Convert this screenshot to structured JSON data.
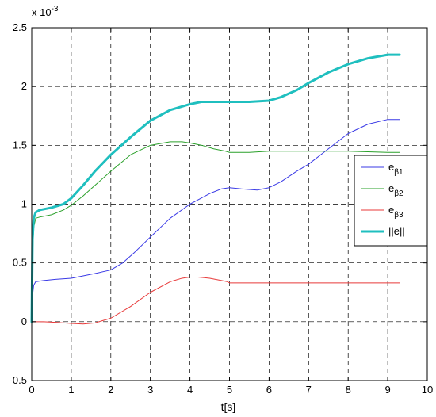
{
  "chart_data": {
    "type": "line",
    "xlabel": "t[s]",
    "ylabel": "",
    "exponent_base": "x 10",
    "exponent_power": "-3",
    "xlim": [
      0,
      10
    ],
    "ylim": [
      -0.5,
      2.5
    ],
    "xticks": [
      "0",
      "1",
      "2",
      "3",
      "4",
      "5",
      "6",
      "7",
      "8",
      "9",
      "10"
    ],
    "yticks": [
      "-0.5",
      "0",
      "0.5",
      "1",
      "1.5",
      "2",
      "2.5"
    ],
    "grid": true,
    "legend_position": "right",
    "series": [
      {
        "name": "e",
        "subscript": "β1",
        "color": "#3a3ae6",
        "width": 1,
        "x": [
          0,
          0.02,
          0.05,
          0.1,
          0.3,
          0.6,
          1.0,
          1.3,
          1.6,
          2.0,
          2.3,
          2.6,
          3.0,
          3.5,
          4.0,
          4.5,
          4.8,
          5.0,
          5.3,
          5.7,
          6.0,
          6.3,
          6.7,
          7.0,
          7.5,
          8.0,
          8.5,
          9.0,
          9.3
        ],
        "y": [
          0,
          0.22,
          0.31,
          0.34,
          0.35,
          0.36,
          0.37,
          0.39,
          0.41,
          0.44,
          0.5,
          0.59,
          0.72,
          0.88,
          1.0,
          1.09,
          1.13,
          1.14,
          1.13,
          1.12,
          1.14,
          1.19,
          1.28,
          1.34,
          1.47,
          1.6,
          1.68,
          1.72,
          1.72
        ]
      },
      {
        "name": "e",
        "subscript": "β2",
        "color": "#2aa02a",
        "width": 1,
        "x": [
          0,
          0.02,
          0.05,
          0.1,
          0.2,
          0.5,
          0.8,
          1.0,
          1.3,
          1.6,
          2.0,
          2.5,
          3.0,
          3.5,
          3.8,
          4.0,
          4.3,
          4.6,
          4.9,
          5.0,
          5.5,
          6.0,
          7.0,
          8.0,
          9.0,
          9.3
        ],
        "y": [
          0,
          0.55,
          0.8,
          0.88,
          0.89,
          0.91,
          0.95,
          0.99,
          1.07,
          1.16,
          1.28,
          1.42,
          1.5,
          1.53,
          1.53,
          1.52,
          1.5,
          1.47,
          1.45,
          1.44,
          1.44,
          1.45,
          1.45,
          1.45,
          1.44,
          1.44
        ]
      },
      {
        "name": "e",
        "subscript": "β3",
        "color": "#e83a3a",
        "width": 1,
        "x": [
          0,
          0.3,
          0.6,
          1.0,
          1.3,
          1.6,
          2.0,
          2.5,
          3.0,
          3.5,
          3.8,
          4.0,
          4.2,
          4.5,
          4.8,
          4.95,
          5.0,
          6.0,
          7.0,
          8.0,
          9.0,
          9.3
        ],
        "y": [
          0,
          0.0,
          -0.005,
          -0.015,
          -0.02,
          -0.01,
          0.03,
          0.13,
          0.25,
          0.34,
          0.37,
          0.38,
          0.38,
          0.37,
          0.35,
          0.34,
          0.33,
          0.33,
          0.33,
          0.33,
          0.33,
          0.33
        ]
      },
      {
        "name": "||e||",
        "subscript": "",
        "color": "#1fbfbf",
        "width": 3,
        "x": [
          0,
          0.02,
          0.05,
          0.1,
          0.2,
          0.5,
          0.8,
          1.0,
          1.3,
          1.6,
          2.0,
          2.5,
          3.0,
          3.5,
          4.0,
          4.3,
          4.6,
          5.0,
          5.5,
          6.0,
          6.3,
          6.7,
          7.0,
          7.5,
          8.0,
          8.5,
          9.0,
          9.3
        ],
        "y": [
          0,
          0.7,
          0.88,
          0.93,
          0.95,
          0.97,
          1.0,
          1.05,
          1.16,
          1.28,
          1.42,
          1.57,
          1.71,
          1.8,
          1.85,
          1.87,
          1.87,
          1.87,
          1.87,
          1.88,
          1.91,
          1.97,
          2.03,
          2.12,
          2.19,
          2.24,
          2.27,
          2.27
        ]
      }
    ]
  }
}
